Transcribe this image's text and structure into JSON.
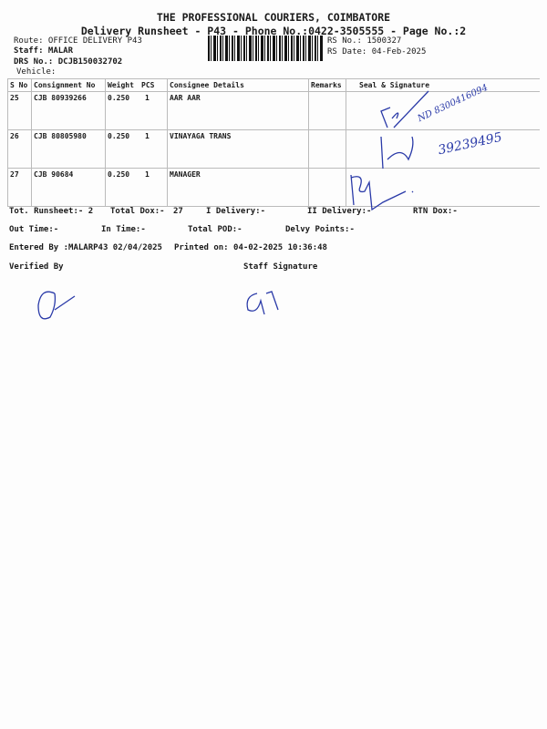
{
  "header": {
    "company": "THE PROFESSIONAL COURIERS, COIMBATORE",
    "subtitle": "Delivery Runsheet - P43 - Phone No.:0422-3505555 - Page No.:2",
    "route": "Route: OFFICE DELIVERY P43",
    "staff": "Staff: MALAR",
    "drs": "DRS No.: DCJB150032702",
    "vehicle": "Vehicle:",
    "rs_no": "RS No.: 1500327",
    "rs_date": "RS Date: 04-Feb-2025"
  },
  "table": {
    "columns": [
      "S No",
      "Consignment No",
      "Weight",
      "PCS",
      "Consignee Details",
      "Remarks",
      "Seal & Signature"
    ],
    "rows": [
      {
        "sno": "25",
        "cons": "CJB 80939266",
        "weight": "0.250",
        "pcs": "1",
        "consignee": "AAR AAR",
        "remarks": ""
      },
      {
        "sno": "26",
        "cons": "CJB 80805980",
        "weight": "0.250",
        "pcs": "1",
        "consignee": "VINAYAGA TRANS",
        "remarks": ""
      },
      {
        "sno": "27",
        "cons": "CJB 90684",
        "weight": "0.250",
        "pcs": "1",
        "consignee": "MANAGER",
        "remarks": ""
      }
    ]
  },
  "handwriting": {
    "row1": "ND 8300416094",
    "row2": "39239495"
  },
  "summary": {
    "tot_runsheet": "Tot. Runsheet:- 2",
    "total_dox": "Total Dox:-",
    "total_dox_val": "27",
    "i_delivery": "I Delivery:-",
    "ii_delivery": "II Delivery:-",
    "rtn_dox": "RTN Dox:-",
    "out_time": "Out Time:-",
    "in_time": "In Time:-",
    "total_pod": "Total POD:-",
    "delvy_points": "Delvy Points:-",
    "entered_by": "Entered By :MALARP43 02/04/2025",
    "printed_on": "Printed on: 04-02-2025 10:36:48",
    "verified_by": "Verified By",
    "staff_signature": "Staff Signature"
  },
  "colors": {
    "ink": "#2a3aa8"
  }
}
